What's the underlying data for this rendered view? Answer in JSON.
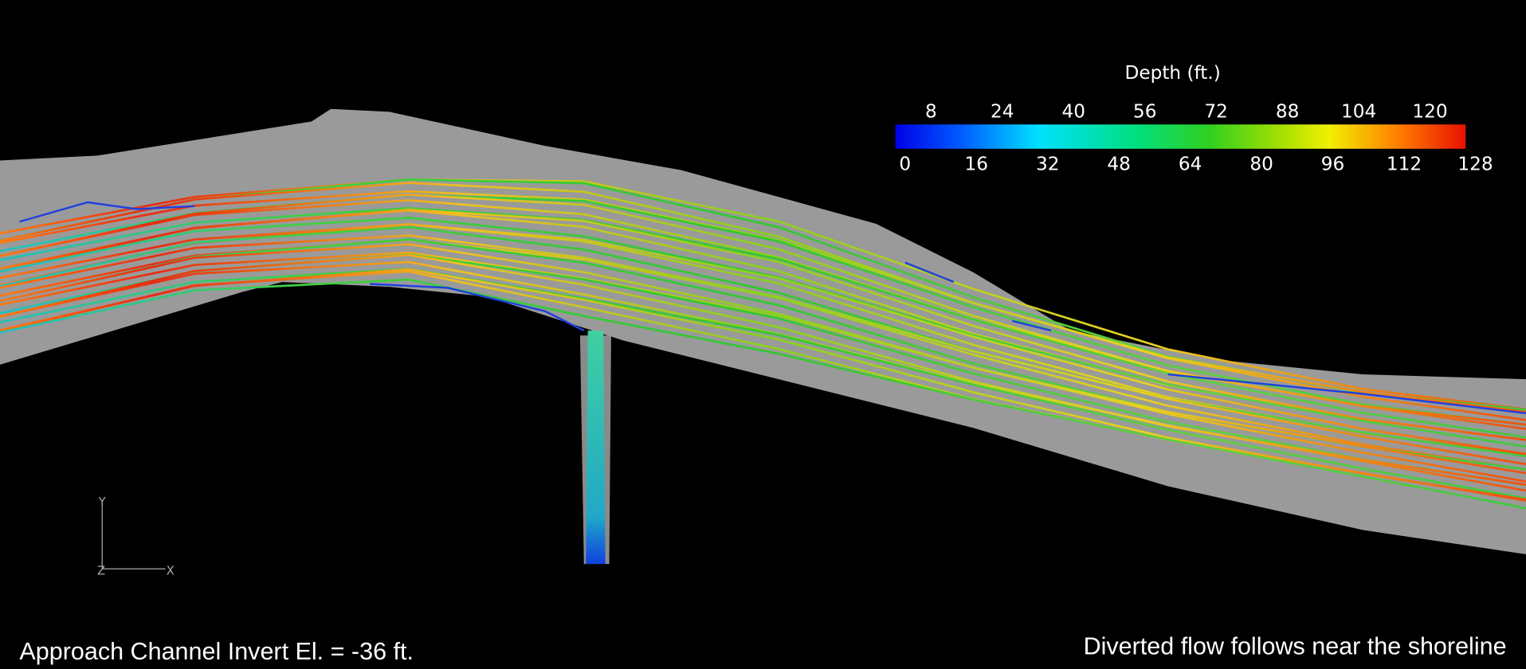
{
  "colorbar": {
    "title": "Depth (ft.)",
    "range": [
      0,
      128
    ],
    "top_ticks": [
      8,
      24,
      40,
      56,
      72,
      88,
      104,
      120
    ],
    "bottom_ticks": [
      0,
      16,
      32,
      48,
      64,
      80,
      96,
      112,
      128
    ]
  },
  "axes_triad": {
    "y": "Y",
    "z": "Z",
    "x": "X"
  },
  "captions": {
    "left": "Approach Channel Invert El. = -36 ft.",
    "right": "Diverted flow follows near the shoreline"
  }
}
